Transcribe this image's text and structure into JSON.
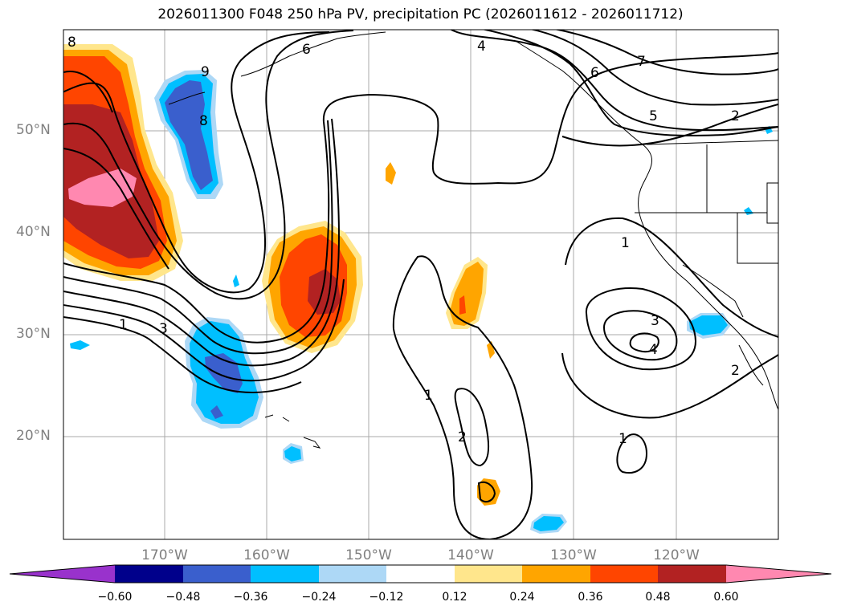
{
  "title": "2026011300 F048 250 hPa PV, precipitation PC (2026011612 - 2026011712)",
  "lat_labels": [
    "50°N",
    "40°N",
    "30°N",
    "20°N"
  ],
  "lon_labels": [
    "170°W",
    "160°W",
    "150°W",
    "140°W",
    "130°W",
    "120°W"
  ],
  "colorbar": {
    "ticks": [
      "−0.60",
      "−0.48",
      "−0.36",
      "−0.24",
      "−0.12",
      "0.12",
      "0.24",
      "0.36",
      "0.48",
      "0.60"
    ],
    "colors": [
      "#9932cc",
      "#00008b",
      "#3a5fcd",
      "#00bfff",
      "#add8f6",
      "#ffffff",
      "#ffe68c",
      "#ffa500",
      "#ff4500",
      "#b22222",
      "#ff88b0"
    ]
  },
  "contour_labels": [
    "8",
    "9",
    "8",
    "6",
    "4",
    "6",
    "7",
    "5",
    "2",
    "1",
    "3",
    "4",
    "2",
    "1",
    "1",
    "2",
    "1",
    "3"
  ],
  "colors": {
    "grid": "#a8a8a8",
    "contour": "#000000",
    "coast": "#000000"
  }
}
